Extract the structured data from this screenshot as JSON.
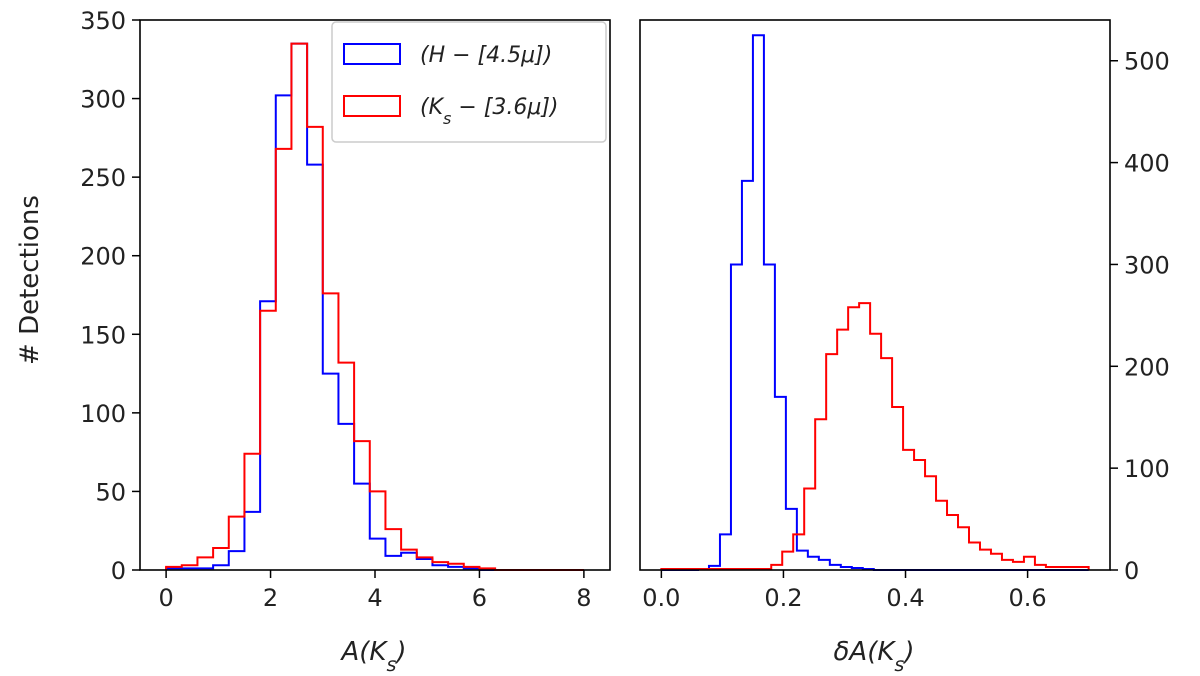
{
  "chart_data": [
    {
      "type": "histogram",
      "ylabel": "# Detections",
      "xlabel": "A(K_s)",
      "xlim": [
        -0.5,
        8.5
      ],
      "ylim": [
        0,
        350
      ],
      "xticks": [
        0,
        2,
        4,
        6,
        8
      ],
      "yticks": [
        0,
        50,
        100,
        150,
        200,
        250,
        300,
        350
      ],
      "legend_position": "top-right",
      "series": [
        {
          "name": "(H − [4.5μ])",
          "color": "#0000ff",
          "edges": [
            0,
            0.3,
            0.6,
            0.9,
            1.2,
            1.5,
            1.8,
            2.1,
            2.4,
            2.7,
            3.0,
            3.3,
            3.6,
            3.9,
            4.2,
            4.5,
            4.8,
            5.1,
            5.4,
            5.7,
            6.0,
            8.0
          ],
          "counts": [
            1,
            1,
            1,
            3,
            12,
            37,
            171,
            302,
            335,
            258,
            125,
            93,
            55,
            20,
            9,
            11,
            7,
            3,
            2,
            1,
            0
          ]
        },
        {
          "name": "(K_s − [3.6μ])",
          "color": "#ff0000",
          "edges": [
            0,
            0.3,
            0.6,
            0.9,
            1.2,
            1.5,
            1.8,
            2.1,
            2.4,
            2.7,
            3.0,
            3.3,
            3.6,
            3.9,
            4.2,
            4.5,
            4.8,
            5.1,
            5.4,
            5.7,
            6.0,
            6.3,
            8.0
          ],
          "counts": [
            2,
            3,
            8,
            14,
            34,
            74,
            165,
            268,
            335,
            282,
            176,
            132,
            82,
            50,
            26,
            13,
            8,
            5,
            4,
            2,
            1,
            0
          ]
        }
      ]
    },
    {
      "type": "histogram",
      "xlabel": "δA(K_s)",
      "xlim": [
        -0.035,
        0.735
      ],
      "ylim": [
        0,
        540
      ],
      "xticks": [
        0.0,
        0.2,
        0.4,
        0.6
      ],
      "xtick_labels": [
        "0.0",
        "0.2",
        "0.4",
        "0.6"
      ],
      "yticks": [
        0,
        100,
        200,
        300,
        400,
        500
      ],
      "yaxis_side": "right",
      "series": [
        {
          "name": "(H − [4.5μ])",
          "color": "#0000ff",
          "edges": [
            0,
            0.06,
            0.078,
            0.096,
            0.114,
            0.132,
            0.15,
            0.168,
            0.186,
            0.204,
            0.222,
            0.24,
            0.258,
            0.276,
            0.294,
            0.312,
            0.33,
            0.348,
            0.7
          ],
          "counts": [
            0,
            1,
            4,
            35,
            300,
            382,
            525,
            300,
            170,
            60,
            19,
            13,
            10,
            5,
            3,
            2,
            1,
            0
          ]
        },
        {
          "name": "(K_s − [3.6μ])",
          "color": "#ff0000",
          "edges": [
            0,
            0.18,
            0.198,
            0.216,
            0.234,
            0.252,
            0.27,
            0.288,
            0.306,
            0.324,
            0.342,
            0.36,
            0.378,
            0.396,
            0.414,
            0.432,
            0.45,
            0.468,
            0.486,
            0.504,
            0.522,
            0.54,
            0.558,
            0.576,
            0.594,
            0.612,
            0.63,
            0.648,
            0.666,
            0.7
          ],
          "counts": [
            1,
            5,
            18,
            35,
            80,
            148,
            212,
            236,
            258,
            262,
            232,
            208,
            160,
            118,
            108,
            92,
            68,
            54,
            42,
            27,
            20,
            16,
            10,
            8,
            13,
            5,
            3,
            3,
            3
          ]
        }
      ]
    }
  ]
}
